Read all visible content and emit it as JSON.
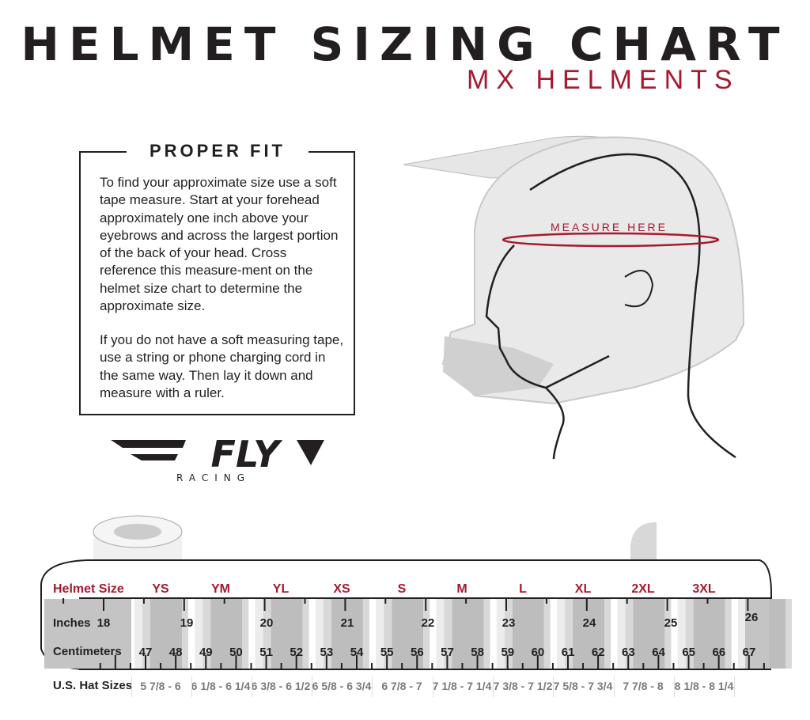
{
  "header": {
    "title": "HELMET SIZING CHART",
    "subtitle": "MX HELMENTS"
  },
  "proper_fit": {
    "heading": "PROPER FIT",
    "paragraph1": "To find your approximate size use a soft tape measure. Start at your forehead approximately one inch above your eyebrows and across the largest portion of the back of your head. Cross reference this measure-ment on the helmet size chart to determine the approximate size.",
    "paragraph2": "If you do not have a soft measuring tape, use a string or phone charging cord in the same way. Then lay it down and measure with a ruler."
  },
  "illustration": {
    "measure_label": "MEASURE HERE"
  },
  "logo": {
    "brand": "FLY",
    "sub": "RACING"
  },
  "chart": {
    "row_labels": {
      "helmet_size": "Helmet Size",
      "inches": "Inches",
      "centimeters": "Centimeters",
      "hat_sizes": "U.S. Hat Sizes"
    },
    "helmet_sizes": [
      "YS",
      "YM",
      "YL",
      "XS",
      "S",
      "M",
      "L",
      "XL",
      "2XL",
      "3XL"
    ],
    "inches": [
      "18",
      "19",
      "20",
      "21",
      "22",
      "23",
      "24",
      "25",
      "26"
    ],
    "centimeters": [
      "47",
      "48",
      "49",
      "50",
      "51",
      "52",
      "53",
      "54",
      "55",
      "56",
      "57",
      "58",
      "59",
      "60",
      "61",
      "62",
      "63",
      "64",
      "65",
      "66",
      "67"
    ],
    "hat_sizes": [
      "5 7/8 - 6",
      "6 1/8 - 6 1/4",
      "6 3/8 - 6 1/2",
      "6 5/8 - 6 3/4",
      "6 7/8 - 7",
      "7 1/8 - 7 1/4",
      "7 3/8 - 7 1/2",
      "7 5/8 - 7 3/4",
      "7 7/8 - 8",
      "8 1/8 - 8 1/4"
    ]
  },
  "colors": {
    "accent": "#a6192e",
    "text": "#231f20",
    "tape_gray": "#bdbdbd"
  }
}
